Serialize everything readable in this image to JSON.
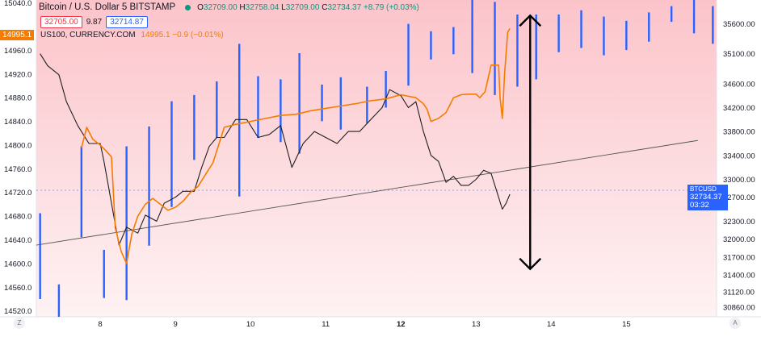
{
  "header": {
    "title": "Bitcoin / U.S. Dollar  5  BITSTAMP",
    "o_label": "O",
    "o": "32709.00",
    "h_label": "H",
    "h": "32758.04",
    "l_label": "L",
    "l": "32709.00",
    "c_label": "C",
    "c": "32734.37",
    "change": "+8.79 (+0.03%)",
    "sell_price": "32705.00",
    "spread": "9.87",
    "buy_price": "32714.87"
  },
  "overlay": {
    "symbol": "US100, CURRENCY.COM",
    "values": "14995.1  −0.9 (−0.01%)",
    "badge": "14995.1"
  },
  "price_badge": {
    "price": "32734.37",
    "countdown": "03:32",
    "symbol": "BTCUSD"
  },
  "buttons": {
    "left": "Z",
    "right": "A"
  },
  "colors": {
    "background_top": "#fbc4ca",
    "background_bottom": "#fef2f3",
    "btc": "#1f1f1f",
    "us100": "#f57c00",
    "volume": "#2962ff",
    "up": "#089981",
    "down": "#f23645",
    "trendline": "#555555",
    "arrow": "#000000"
  },
  "chart_data": {
    "type": "line",
    "left_axis": {
      "ylim": [
        14510,
        15045
      ],
      "ticks": [
        "15040.0",
        "14960.0",
        "14920.0",
        "14880.0",
        "14840.0",
        "14800.0",
        "14760.0",
        "14720.0",
        "14680.0",
        "14640.0",
        "14600.0",
        "14560.0",
        "14520.0"
      ]
    },
    "right_axis": {
      "ylim": [
        30700,
        36000
      ],
      "ticks": [
        "35600.00",
        "35100.00",
        "34600.00",
        "34200.00",
        "33800.00",
        "33400.00",
        "33000.00",
        "32700.00",
        "32300.00",
        "32000.00",
        "31700.00",
        "31400.00",
        "31120.00",
        "30860.00"
      ]
    },
    "x_ticks": [
      "8",
      "9",
      "10",
      "11",
      "12",
      "13",
      "14",
      "15"
    ],
    "x_tick_pos": [
      8,
      9,
      10,
      11,
      12,
      13,
      14,
      15
    ],
    "xlim": [
      7.15,
      16.2
    ],
    "series": [
      {
        "name": "BTCUSD",
        "axis": "right",
        "x": [
          7.2,
          7.3,
          7.45,
          7.55,
          7.7,
          7.85,
          8.0,
          8.05,
          8.15,
          8.25,
          8.35,
          8.5,
          8.6,
          8.75,
          8.85,
          9.0,
          9.1,
          9.25,
          9.35,
          9.45,
          9.55,
          9.65,
          9.8,
          9.95,
          10.1,
          10.25,
          10.4,
          10.55,
          10.7,
          10.85,
          11.0,
          11.15,
          11.3,
          11.45,
          11.6,
          11.75,
          11.85,
          12.0,
          12.1,
          12.2,
          12.3,
          12.4,
          12.5,
          12.6,
          12.7,
          12.8,
          12.9,
          13.0,
          13.1,
          13.2,
          13.3,
          13.35,
          13.4,
          13.45
        ],
        "values": [
          35100,
          34900,
          34750,
          34300,
          33900,
          33600,
          33600,
          33300,
          32600,
          31900,
          32200,
          32100,
          32400,
          32300,
          32600,
          32700,
          32800,
          32800,
          33200,
          33550,
          33700,
          33700,
          34000,
          34000,
          33700,
          33750,
          33900,
          33200,
          33600,
          33800,
          33700,
          33600,
          33800,
          33800,
          34000,
          34200,
          34500,
          34400,
          34200,
          34300,
          33800,
          33400,
          33300,
          32950,
          33050,
          32900,
          32900,
          33000,
          33150,
          33100,
          32700,
          32500,
          32600,
          32750
        ]
      },
      {
        "name": "US100",
        "axis": "left",
        "x": [
          7.75,
          7.82,
          7.9,
          8.0,
          8.08,
          8.15,
          8.2,
          8.28,
          8.35,
          8.42,
          8.5,
          8.6,
          8.7,
          8.8,
          8.9,
          9.0,
          9.1,
          9.2,
          9.3,
          9.4,
          9.5,
          9.65,
          9.8,
          10.0,
          10.2,
          10.4,
          10.6,
          10.8,
          11.0,
          11.2,
          11.4,
          11.6,
          11.8,
          12.0,
          12.2,
          12.3,
          12.35,
          12.4,
          12.5,
          12.6,
          12.7,
          12.8,
          12.9,
          13.0,
          13.05,
          13.12,
          13.2,
          13.25,
          13.3,
          13.32,
          13.35,
          13.38,
          13.42,
          13.45
        ],
        "values": [
          14795,
          14830,
          14810,
          14800,
          14790,
          14780,
          14660,
          14620,
          14600,
          14650,
          14680,
          14700,
          14710,
          14700,
          14690,
          14695,
          14705,
          14720,
          14730,
          14750,
          14770,
          14830,
          14835,
          14840,
          14845,
          14850,
          14852,
          14858,
          14862,
          14866,
          14870,
          14875,
          14878,
          14885,
          14880,
          14870,
          14860,
          14840,
          14845,
          14855,
          14880,
          14885,
          14886,
          14886,
          14880,
          14890,
          14935,
          14935,
          14935,
          14880,
          14845,
          14920,
          14990,
          14997
        ]
      }
    ],
    "trendline": {
      "x": [
        7.15,
        15.95
      ],
      "y": [
        31900,
        33650
      ],
      "axis": "right"
    },
    "volume": [
      {
        "x": 7.2,
        "lo": 13.6,
        "hi": 21.8
      },
      {
        "x": 7.45,
        "lo": 11.9,
        "hi": 15.0
      },
      {
        "x": 7.75,
        "lo": 19.5,
        "hi": 28.2
      },
      {
        "x": 8.05,
        "lo": 13.7,
        "hi": 18.3
      },
      {
        "x": 8.35,
        "lo": 13.5,
        "hi": 28.2
      },
      {
        "x": 8.65,
        "lo": 18.7,
        "hi": 30.1
      },
      {
        "x": 8.95,
        "lo": 22.4,
        "hi": 32.5
      },
      {
        "x": 9.25,
        "lo": 26.9,
        "hi": 33.1
      },
      {
        "x": 9.55,
        "lo": 29.0,
        "hi": 34.4
      },
      {
        "x": 9.85,
        "lo": 23.4,
        "hi": 38.0
      },
      {
        "x": 10.1,
        "lo": 29.0,
        "hi": 34.9
      },
      {
        "x": 10.4,
        "lo": 28.6,
        "hi": 34.6
      },
      {
        "x": 10.65,
        "lo": 27.5,
        "hi": 37.1
      },
      {
        "x": 10.95,
        "lo": 30.6,
        "hi": 34.1
      },
      {
        "x": 11.2,
        "lo": 29.8,
        "hi": 34.8
      },
      {
        "x": 11.55,
        "lo": 30.4,
        "hi": 33.9
      },
      {
        "x": 11.8,
        "lo": 31.9,
        "hi": 35.4
      },
      {
        "x": 12.1,
        "lo": 34.0,
        "hi": 39.9
      },
      {
        "x": 12.4,
        "lo": 36.5,
        "hi": 39.2
      },
      {
        "x": 12.7,
        "lo": 37.0,
        "hi": 39.6
      },
      {
        "x": 12.95,
        "lo": 35.2,
        "hi": 42.2
      },
      {
        "x": 13.25,
        "lo": 33.1,
        "hi": 42.0
      },
      {
        "x": 13.55,
        "lo": 33.9,
        "hi": 40.8
      },
      {
        "x": 13.8,
        "lo": 34.6,
        "hi": 40.8
      },
      {
        "x": 14.1,
        "lo": 37.2,
        "hi": 40.8
      },
      {
        "x": 14.4,
        "lo": 37.6,
        "hi": 41.2
      },
      {
        "x": 14.7,
        "lo": 36.9,
        "hi": 40.6
      },
      {
        "x": 15.0,
        "lo": 37.4,
        "hi": 40.2
      },
      {
        "x": 15.3,
        "lo": 38.2,
        "hi": 41.0
      },
      {
        "x": 15.6,
        "lo": 40.1,
        "hi": 41.6
      },
      {
        "x": 15.9,
        "lo": 39.0,
        "hi": 42.2
      },
      {
        "x": 16.15,
        "lo": 38.0,
        "hi": 41.6
      }
    ],
    "arrow": {
      "x": 13.72,
      "y_top": 35740,
      "y_bottom": 31500,
      "axis": "right"
    }
  }
}
